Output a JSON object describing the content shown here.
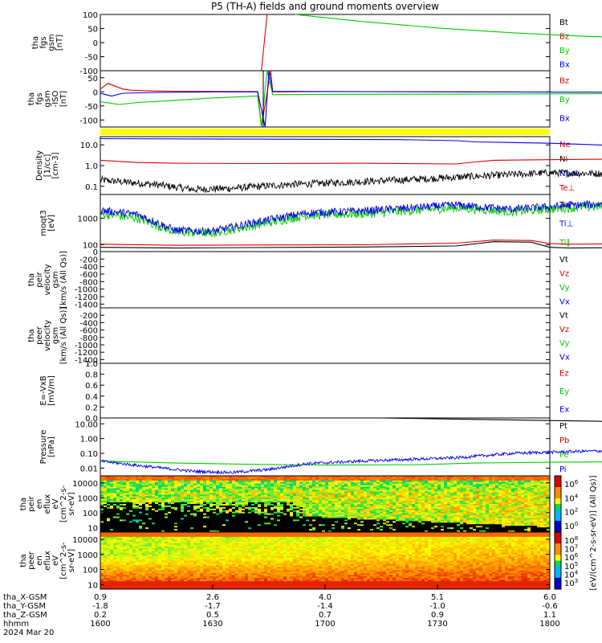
{
  "title": "P5 (TH-A) fields and ground moments overview",
  "colors": {
    "black": "#000000",
    "red": "#dd0000",
    "green": "#00cc00",
    "blue": "#0000ee",
    "yellow": "#ffff00"
  },
  "chart_data": [
    {
      "id": "p1",
      "type": "line",
      "ylabel": [
        "tha",
        "fgs",
        "gsm",
        "[nT]"
      ],
      "yticks": [
        "100",
        "50",
        "0",
        "-50",
        "-100"
      ],
      "ylim": [
        -100,
        100
      ],
      "legend": [
        {
          "t": "Bt",
          "c": "black"
        },
        {
          "t": "Bz",
          "c": "red"
        },
        {
          "t": "By",
          "c": "green"
        },
        {
          "t": "Bx",
          "c": "blue"
        }
      ],
      "series": [
        {
          "c": "red",
          "pts": [
            [
              43,
              -100
            ],
            [
              44.5,
              100
            ]
          ]
        },
        {
          "c": "green",
          "pts": [
            [
              52,
              100
            ],
            [
              70,
              75
            ],
            [
              90,
              52
            ],
            [
              110,
              35
            ],
            [
              130,
              22
            ],
            [
              150,
              14
            ],
            [
              172,
              8
            ]
          ]
        }
      ]
    },
    {
      "id": "p2",
      "type": "line",
      "ylabel": [
        "tha",
        "fgs",
        "gsm",
        "-ISO",
        "[nT]"
      ],
      "yticks": [
        "50",
        "0",
        "-50",
        "-100"
      ],
      "ylim": [
        -125,
        75
      ],
      "legend": [
        {
          "t": "Bz",
          "c": "red"
        },
        {
          "t": "By",
          "c": "green"
        },
        {
          "t": "Bx",
          "c": "blue"
        }
      ],
      "series": [
        {
          "c": "red",
          "pts": [
            [
              0,
              10
            ],
            [
              2,
              30
            ],
            [
              4,
              20
            ],
            [
              6,
              10
            ],
            [
              8,
              6
            ],
            [
              14,
              3
            ],
            [
              20,
              2
            ],
            [
              42,
              1
            ],
            [
              43,
              -125
            ],
            [
              45.5,
              75
            ],
            [
              46,
              0
            ],
            [
              60,
              1
            ],
            [
              100,
              0
            ],
            [
              172,
              -2
            ]
          ]
        },
        {
          "c": "green",
          "pts": [
            [
              0,
              -35
            ],
            [
              5,
              -45
            ],
            [
              10,
              -38
            ],
            [
              20,
              -30
            ],
            [
              30,
              -22
            ],
            [
              42,
              -15
            ],
            [
              43,
              -125
            ],
            [
              44.5,
              75
            ],
            [
              46,
              -10
            ],
            [
              60,
              -9
            ],
            [
              100,
              -8
            ],
            [
              172,
              -5
            ]
          ]
        },
        {
          "c": "blue",
          "pts": [
            [
              0,
              -5
            ],
            [
              3,
              -15
            ],
            [
              6,
              -5
            ],
            [
              15,
              -2
            ],
            [
              30,
              0
            ],
            [
              42,
              0
            ],
            [
              44,
              -125
            ],
            [
              45,
              75
            ],
            [
              46,
              2
            ],
            [
              60,
              1
            ],
            [
              100,
              0
            ],
            [
              172,
              -2
            ]
          ]
        }
      ]
    },
    {
      "id": "p3",
      "type": "line",
      "yscale": "log",
      "ylabel": [
        "Density",
        "[1/cc]",
        "[cm-3]"
      ],
      "yticks": [
        "10.0",
        "1.0",
        "0.1"
      ],
      "ylim": [
        0.04,
        25
      ],
      "legend": [
        {
          "t": "Ne",
          "c": "red"
        },
        {
          "t": "Ni",
          "c": "black"
        },
        {
          "t": "Npot",
          "c": "blue"
        },
        {
          "t": "Te⊥",
          "c": "red"
        }
      ],
      "series": [
        {
          "c": "blue",
          "pts": [
            [
              0,
              20
            ],
            [
              40,
              19
            ],
            [
              80,
              18
            ],
            [
              95,
              16
            ],
            [
              100,
              14
            ],
            [
              120,
              12
            ],
            [
              140,
              9
            ],
            [
              155,
              8
            ],
            [
              165,
              6
            ],
            [
              172,
              10
            ]
          ]
        },
        {
          "c": "red",
          "pts": [
            [
              0,
              1.8
            ],
            [
              10,
              1.4
            ],
            [
              20,
              1.3
            ],
            [
              40,
              1.25
            ],
            [
              70,
              1.3
            ],
            [
              95,
              1.2
            ],
            [
              100,
              1.5
            ],
            [
              105,
              1.8
            ],
            [
              130,
              2.0
            ],
            [
              172,
              2.2
            ]
          ]
        },
        {
          "c": "black",
          "noise": 0.35,
          "pts": [
            [
              0,
              0.2
            ],
            [
              15,
              0.12
            ],
            [
              25,
              0.07
            ],
            [
              35,
              0.08
            ],
            [
              50,
              0.12
            ],
            [
              80,
              0.2
            ],
            [
              100,
              0.3
            ],
            [
              120,
              0.45
            ],
            [
              140,
              0.4
            ],
            [
              172,
              0.35
            ]
          ]
        }
      ]
    },
    {
      "id": "p4",
      "type": "line",
      "yscale": "log",
      "ylabel": [
        "moqt3",
        "[eV]"
      ],
      "yticks": [
        "1000",
        "100"
      ],
      "ylim": [
        55,
        8000
      ],
      "legend": [
        {
          "t": "Te∥",
          "c": "black"
        },
        {
          "t": "Ti⊥",
          "c": "blue"
        },
        {
          "t": "Ti∥",
          "c": "green"
        }
      ],
      "series": [
        {
          "c": "green",
          "noise": 0.35,
          "pts": [
            [
              0,
              1500
            ],
            [
              10,
              1000
            ],
            [
              20,
              300
            ],
            [
              30,
              280
            ],
            [
              40,
              500
            ],
            [
              55,
              1300
            ],
            [
              70,
              1500
            ],
            [
              95,
              2500
            ],
            [
              110,
              1800
            ],
            [
              125,
              2500
            ],
            [
              140,
              3000
            ],
            [
              160,
              3200
            ],
            [
              172,
              3500
            ]
          ]
        },
        {
          "c": "blue",
          "noise": 0.3,
          "pts": [
            [
              0,
              2000
            ],
            [
              10,
              1400
            ],
            [
              20,
              350
            ],
            [
              30,
              320
            ],
            [
              40,
              650
            ],
            [
              55,
              1600
            ],
            [
              70,
              1900
            ],
            [
              95,
              3200
            ],
            [
              110,
              2200
            ],
            [
              125,
              3100
            ],
            [
              140,
              3800
            ],
            [
              160,
              4200
            ],
            [
              172,
              4800
            ]
          ]
        },
        {
          "c": "red",
          "pts": [
            [
              0,
              105
            ],
            [
              20,
              95
            ],
            [
              40,
              98
            ],
            [
              70,
              100
            ],
            [
              95,
              115
            ],
            [
              105,
              150
            ],
            [
              115,
              145
            ],
            [
              120,
              110
            ],
            [
              125,
              105
            ],
            [
              150,
              110
            ],
            [
              172,
              115
            ]
          ]
        },
        {
          "c": "black",
          "pts": [
            [
              0,
              80
            ],
            [
              20,
              75
            ],
            [
              40,
              78
            ],
            [
              70,
              82
            ],
            [
              95,
              90
            ],
            [
              105,
              130
            ],
            [
              115,
              125
            ],
            [
              120,
              80
            ],
            [
              125,
              75
            ],
            [
              150,
              80
            ],
            [
              172,
              85
            ]
          ]
        }
      ]
    },
    {
      "id": "p5",
      "type": "line",
      "ylabel": [
        "tha",
        "peir",
        "velocity",
        "gsm",
        "[km/s (All Qs)]"
      ],
      "yticks": [
        "0",
        "-200",
        "-400",
        "-600",
        "-800",
        "-1000",
        "-1200",
        "-1400"
      ],
      "ylim": [
        -1500,
        0
      ],
      "legend": [
        {
          "t": "Vt",
          "c": "black"
        },
        {
          "t": "Vz",
          "c": "red"
        },
        {
          "t": "Vy",
          "c": "green"
        },
        {
          "t": "Vx",
          "c": "blue"
        }
      ],
      "series": []
    },
    {
      "id": "p6",
      "type": "line",
      "ylabel": [
        "tha",
        "peer",
        "velocity",
        "gsm",
        "[km/s (All Qs)]"
      ],
      "yticks": [
        "-200",
        "-400",
        "-600",
        "-800",
        "-1000",
        "-1200",
        "-1400"
      ],
      "ylim": [
        -1500,
        0
      ],
      "legend": [
        {
          "t": "Vt",
          "c": "black"
        },
        {
          "t": "Vz",
          "c": "red"
        },
        {
          "t": "Vy",
          "c": "green"
        },
        {
          "t": "Vx",
          "c": "blue"
        }
      ],
      "series": []
    },
    {
      "id": "p7",
      "type": "line",
      "ylabel": [
        "E=-VxB",
        "[mV/m]"
      ],
      "yticks": [
        "1.0",
        "0.8",
        "0.6",
        "0.4",
        "0.2",
        "0.0"
      ],
      "ylim": [
        0,
        1
      ],
      "legend": [
        {
          "t": "Ez",
          "c": "red"
        },
        {
          "t": "Ey",
          "c": "green"
        },
        {
          "t": "Ex",
          "c": "blue"
        }
      ],
      "series": []
    },
    {
      "id": "p8",
      "type": "line",
      "yscale": "log",
      "ylabel": [
        "Pressure",
        "[nPa]"
      ],
      "yticks": [
        "10.00",
        "1.00",
        "0.10",
        "0.01"
      ],
      "ylim": [
        0.003,
        25
      ],
      "legend": [
        {
          "t": "Pt",
          "c": "black"
        },
        {
          "t": "Pb",
          "c": "red"
        },
        {
          "t": "Pe",
          "c": "green"
        },
        {
          "t": "Pi",
          "c": "blue"
        }
      ],
      "series": [
        {
          "c": "black",
          "pts": [
            [
              75,
              25
            ],
            [
              100,
              20
            ],
            [
              140,
              14
            ],
            [
              172,
              10
            ]
          ]
        },
        {
          "c": "green",
          "pts": [
            [
              0,
              0.03
            ],
            [
              20,
              0.022
            ],
            [
              40,
              0.018
            ],
            [
              60,
              0.016
            ],
            [
              85,
              0.017
            ],
            [
              100,
              0.022
            ],
            [
              120,
              0.025
            ],
            [
              140,
              0.027
            ],
            [
              172,
              0.028
            ]
          ]
        },
        {
          "c": "blue",
          "noise": 0.2,
          "pts": [
            [
              0,
              0.03
            ],
            [
              10,
              0.015
            ],
            [
              25,
              0.006
            ],
            [
              35,
              0.005
            ],
            [
              45,
              0.008
            ],
            [
              55,
              0.02
            ],
            [
              70,
              0.03
            ],
            [
              95,
              0.05
            ],
            [
              110,
              0.1
            ],
            [
              130,
              0.14
            ],
            [
              150,
              0.17
            ],
            [
              172,
              0.2
            ]
          ]
        }
      ]
    },
    {
      "id": "p9",
      "type": "heatmap",
      "ylabel": [
        "tha",
        "peir",
        "en",
        "eflux",
        "eV",
        "[cm^2-s-",
        "sr-eV]"
      ],
      "yticks": [
        "10000",
        "1000",
        "100",
        "10"
      ],
      "ylim": [
        5,
        30000
      ]
    },
    {
      "id": "p10",
      "type": "heatmap",
      "ylabel": [
        "tha",
        "peer",
        "en",
        "eflux",
        "eV",
        "[cm^2-s-",
        "sr-eV]"
      ],
      "yticks": [
        "10000",
        "1000",
        "100",
        "10"
      ],
      "ylim": [
        5,
        30000
      ]
    }
  ],
  "colorbar": {
    "label": "[eV/(cm^2-s-sr-eV)] (All Qs)]",
    "top": {
      "ticks": [
        "10^6",
        "10^4",
        "10^2",
        "10^0"
      ]
    },
    "bottom": {
      "ticks": [
        "10^8",
        "10^7",
        "10^6",
        "10^5",
        "10^4",
        "10^3"
      ]
    }
  },
  "xaxis": {
    "rows": [
      {
        "label": "tha_X-GSM",
        "values": [
          "0.9",
          "2.6",
          "4.0",
          "5.1",
          "6.0"
        ]
      },
      {
        "label": "tha_Y-GSM",
        "values": [
          "-1.8",
          "-1.7",
          "-1.4",
          "-1.0",
          "-0.6"
        ]
      },
      {
        "label": "tha_Z-GSM",
        "values": [
          "0.2",
          "0.5",
          "0.7",
          "0.9",
          "1.1"
        ]
      },
      {
        "label": "hhmm",
        "values": [
          "1600",
          "1630",
          "1700",
          "1730",
          "1800"
        ]
      }
    ],
    "date": "2024 Mar 20"
  }
}
